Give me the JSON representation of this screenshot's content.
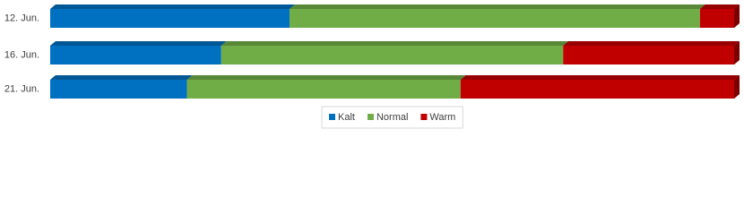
{
  "chart_data": {
    "type": "bar",
    "orientation": "horizontal",
    "stacked": true,
    "categories": [
      "12. Jun.",
      "16. Jun.",
      "21. Jun."
    ],
    "series": [
      {
        "name": "Kalt",
        "color": "#0070c0",
        "values": [
          35,
          25,
          20
        ]
      },
      {
        "name": "Normal",
        "color": "#70ad47",
        "values": [
          60,
          50,
          40
        ]
      },
      {
        "name": "Warm",
        "color": "#c00000",
        "values": [
          5,
          25,
          40
        ]
      }
    ],
    "legend": "bottom"
  }
}
